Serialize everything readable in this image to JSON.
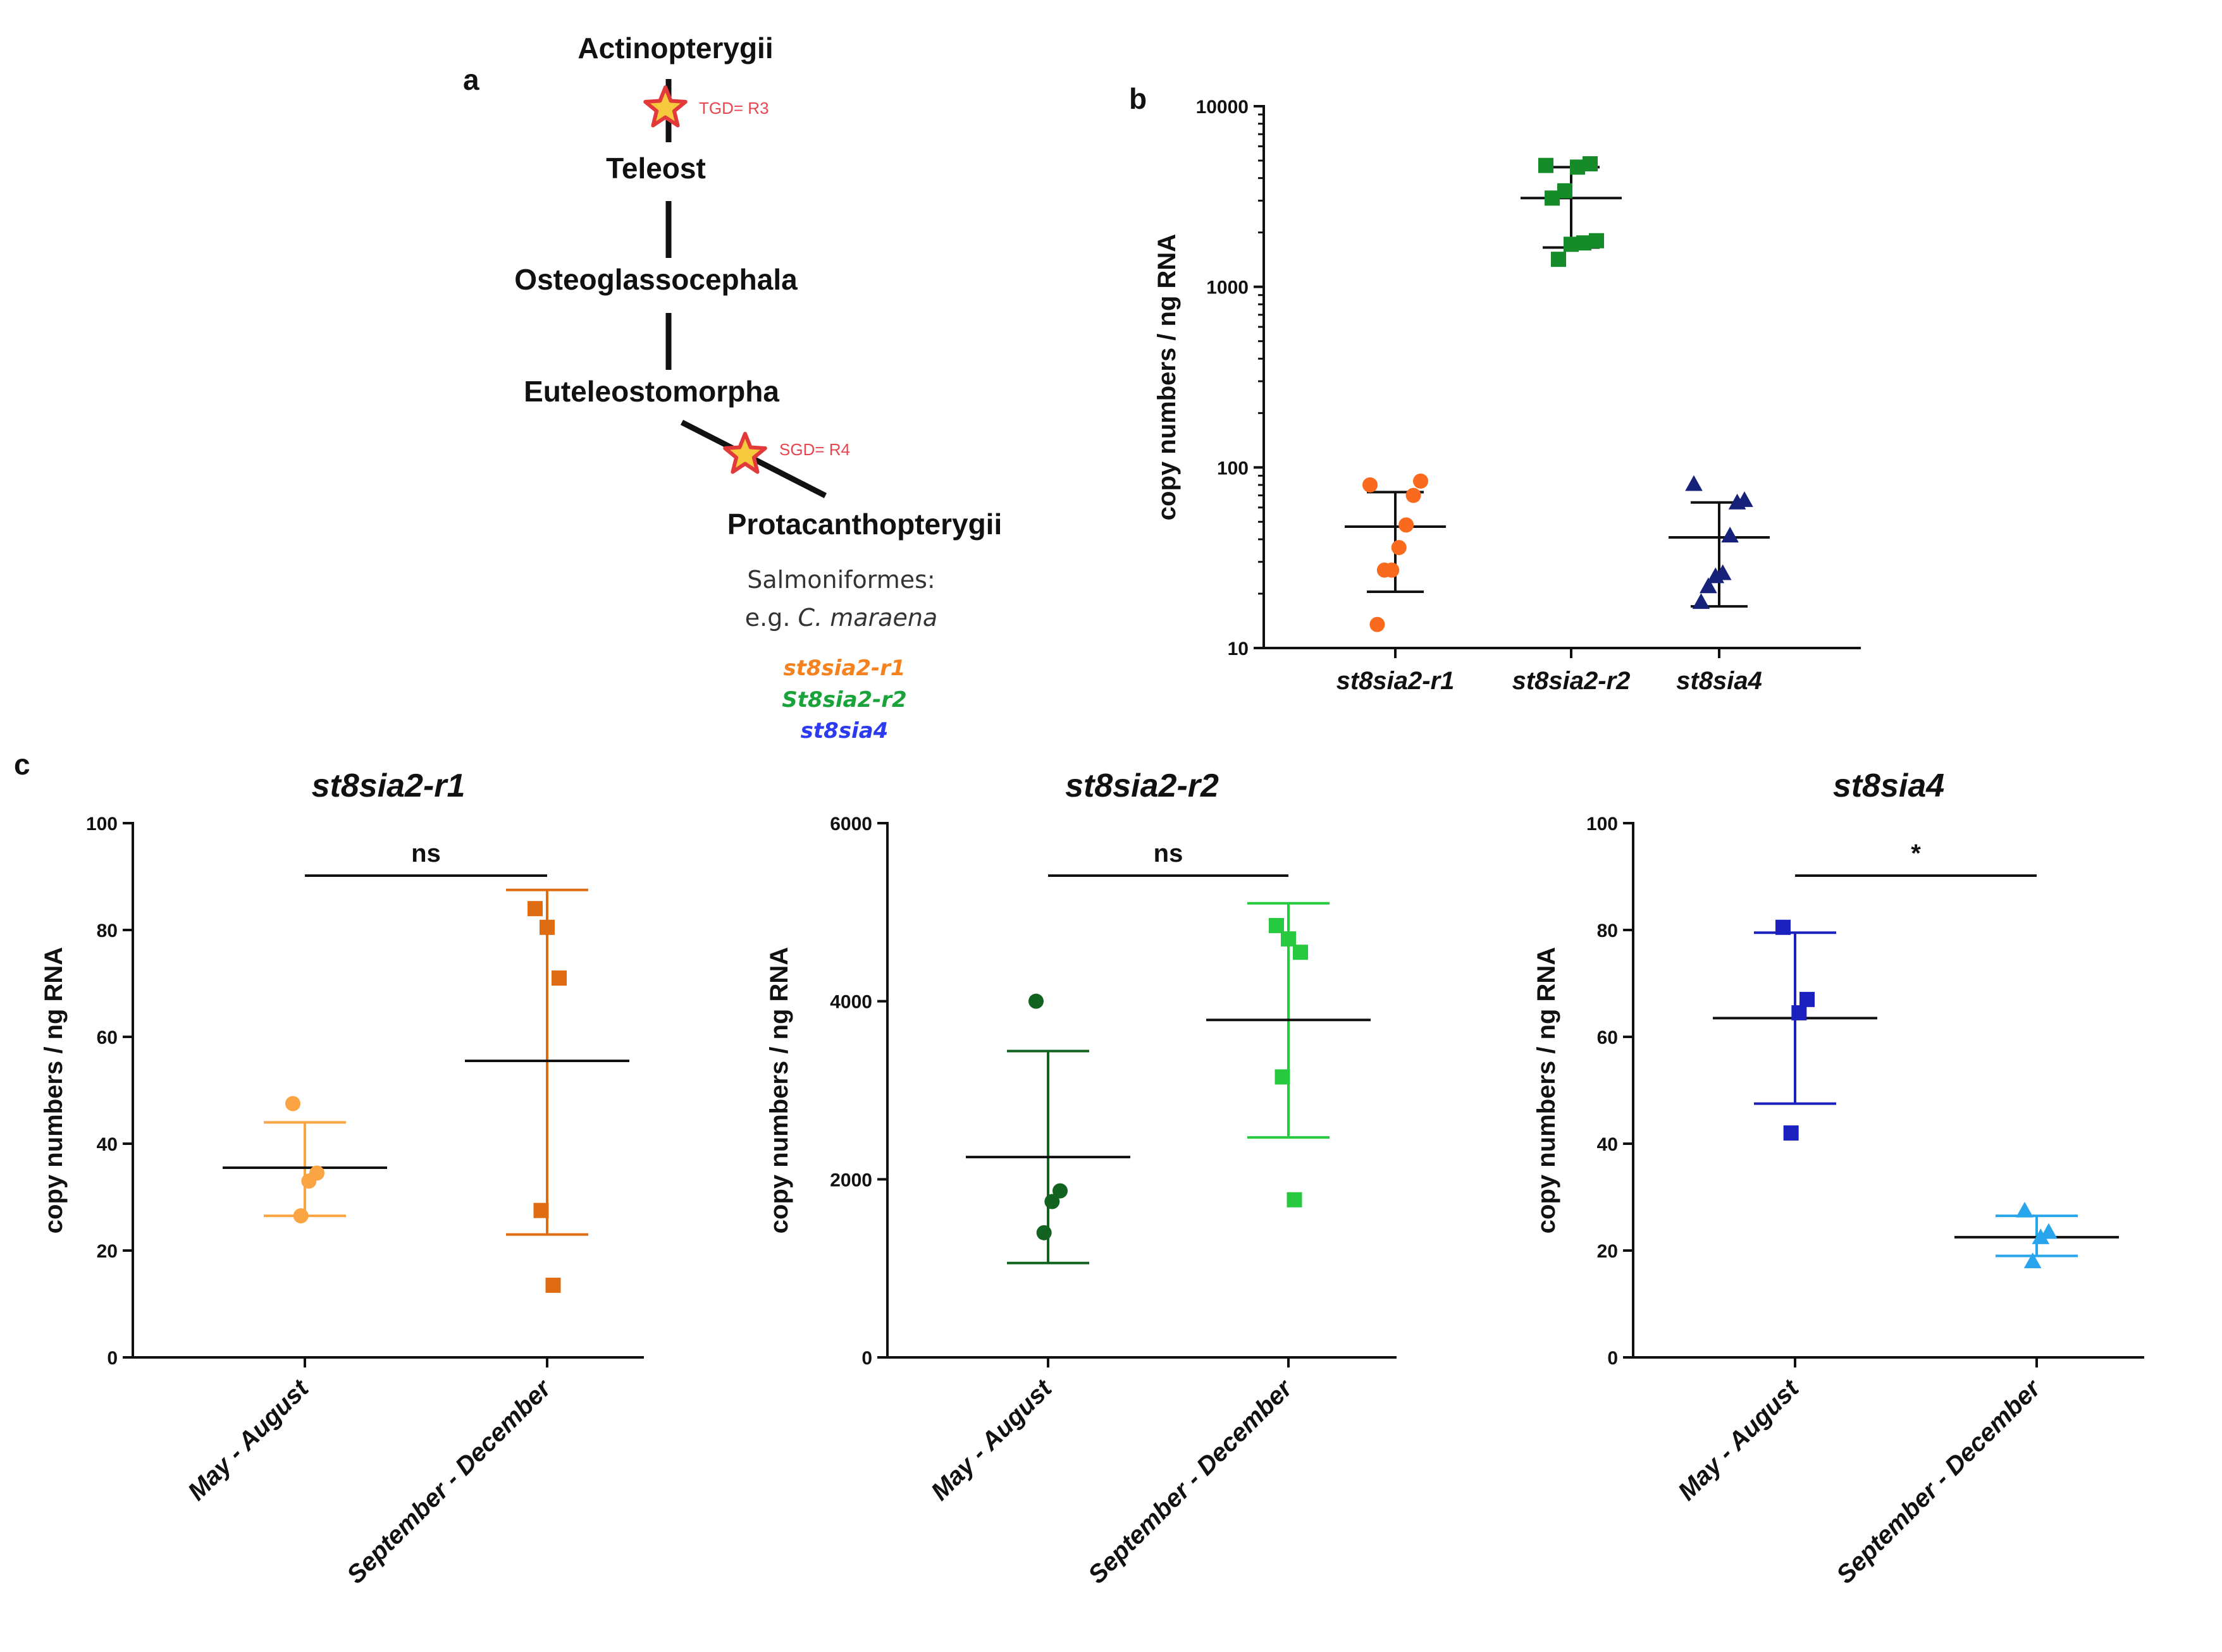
{
  "panel_letters": {
    "a": "a",
    "b": "b",
    "c": "c"
  },
  "tree": {
    "nodes": [
      "Actinopterygii",
      "Teleost",
      "Osteoglassocephala",
      "Euteleostomorpha",
      "Protacanthopterygii"
    ],
    "tgd": "TGD= R3",
    "sgd": "SGD= R4",
    "salmo_line1": "Salmoniformes:",
    "salmo_prefix": "e.g. ",
    "salmo_species": "C. maraena",
    "genes": [
      {
        "label": "st8sia2-r1",
        "color": "#f5821f"
      },
      {
        "label": "St8sia2-r2",
        "color": "#1aa33a"
      },
      {
        "label": "st8sia4",
        "color": "#2d3bf0"
      }
    ]
  },
  "chart_data": [
    {
      "id": "b",
      "type": "scatter",
      "title": "",
      "ylabel": "copy numbers / ng RNA",
      "yscale": "log",
      "ylim": [
        10,
        10000
      ],
      "yticks": [
        "10",
        "100",
        "1000",
        "10000"
      ],
      "categories": [
        "st8sia2-r1",
        "st8sia2-r2",
        "st8sia4"
      ],
      "series": [
        {
          "name": "st8sia2-r1",
          "color": "#f96a1e",
          "marker": "circle",
          "values": [
            80,
            84,
            70,
            48,
            36,
            27,
            27,
            13.5
          ],
          "mean": 47,
          "sd": [
            20.5,
            73
          ]
        },
        {
          "name": "st8sia2-r2",
          "color": "#168b2a",
          "marker": "square",
          "values": [
            4700,
            4800,
            4600,
            3400,
            3100,
            1800,
            1750,
            1720,
            1420
          ],
          "mean": 3100,
          "sd": [
            1650,
            4600
          ]
        },
        {
          "name": "st8sia4",
          "color": "#16227a",
          "marker": "triangle",
          "values": [
            81,
            66,
            64,
            42,
            26,
            25,
            22,
            18
          ],
          "mean": 41,
          "sd": [
            17,
            64
          ]
        }
      ]
    },
    {
      "id": "c1",
      "type": "scatter",
      "title": "st8sia2-r1",
      "ylabel": "copy numbers / ng RNA",
      "ylim": [
        0,
        100
      ],
      "yticks": [
        "0",
        "20",
        "40",
        "60",
        "80",
        "100"
      ],
      "categories": [
        "May - August",
        "September - December"
      ],
      "significance": "ns",
      "series": [
        {
          "name": "May - August",
          "color": "#fba444",
          "marker": "circle",
          "values": [
            47.5,
            34.5,
            33,
            26.5
          ],
          "mean": 35.5,
          "sd": [
            26.5,
            44
          ]
        },
        {
          "name": "September - December",
          "color": "#df6b12",
          "marker": "square",
          "values": [
            84,
            80.5,
            71,
            27.5,
            13.5
          ],
          "mean": 55.5,
          "sd": [
            23,
            87.5
          ]
        }
      ]
    },
    {
      "id": "c2",
      "type": "scatter",
      "title": "st8sia2-r2",
      "ylabel": "copy numbers / ng RNA",
      "ylim": [
        0,
        6000
      ],
      "yticks": [
        "0",
        "2000",
        "4000",
        "6000"
      ],
      "categories": [
        "May - August",
        "September - December"
      ],
      "significance": "ns",
      "series": [
        {
          "name": "May - August",
          "color": "#12631f",
          "marker": "circle",
          "values": [
            4000,
            1870,
            1750,
            1400
          ],
          "mean": 2250,
          "sd": [
            1060,
            3440
          ]
        },
        {
          "name": "September - December",
          "color": "#27c93f",
          "marker": "square",
          "values": [
            4850,
            4700,
            4550,
            3150,
            1770
          ],
          "mean": 3790,
          "sd": [
            2470,
            5100
          ]
        }
      ]
    },
    {
      "id": "c3",
      "type": "scatter",
      "title": "st8sia4",
      "ylabel": "copy numbers / ng RNA",
      "ylim": [
        0,
        100
      ],
      "yticks": [
        "0",
        "20",
        "40",
        "60",
        "80",
        "100"
      ],
      "categories": [
        "May - August",
        "September - December"
      ],
      "significance": "*",
      "series": [
        {
          "name": "May - August",
          "color": "#1b21be",
          "marker": "square",
          "values": [
            80.5,
            67,
            64.5,
            42
          ],
          "mean": 63.5,
          "sd": [
            47.5,
            79.5
          ]
        },
        {
          "name": "September - December",
          "color": "#29a5ee",
          "marker": "triangle",
          "values": [
            27.5,
            23.5,
            22.5,
            18
          ],
          "mean": 22.5,
          "sd": [
            19,
            26.5
          ]
        }
      ]
    }
  ]
}
